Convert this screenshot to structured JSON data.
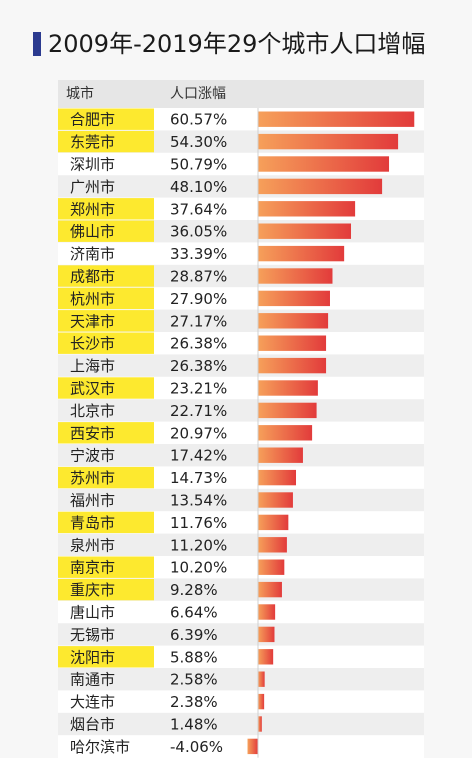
{
  "title": "2009年-2019年29个城市人口增幅",
  "table": {
    "col_city": "城市",
    "col_growth": "人口涨幅"
  },
  "colors": {
    "highlight": "#fde92f",
    "bar_start": "#f6a05a",
    "bar_end": "#e23b3b",
    "row_alt": "#eeeeee",
    "accent": "#2b3a8f"
  },
  "chart_data": {
    "type": "bar",
    "orientation": "horizontal",
    "title": "2009年-2019年29个城市人口增幅",
    "categories": [
      "合肥市",
      "东莞市",
      "深圳市",
      "广州市",
      "郑州市",
      "佛山市",
      "济南市",
      "成都市",
      "杭州市",
      "天津市",
      "长沙市",
      "上海市",
      "武汉市",
      "北京市",
      "西安市",
      "宁波市",
      "苏州市",
      "福州市",
      "青岛市",
      "泉州市",
      "南京市",
      "重庆市",
      "唐山市",
      "无锡市",
      "沈阳市",
      "南通市",
      "大连市",
      "烟台市",
      "哈尔滨市"
    ],
    "values": [
      60.57,
      54.3,
      50.79,
      48.1,
      37.64,
      36.05,
      33.39,
      28.87,
      27.9,
      27.17,
      26.38,
      26.38,
      23.21,
      22.71,
      20.97,
      17.42,
      14.73,
      13.54,
      11.76,
      11.2,
      10.2,
      9.28,
      6.64,
      6.39,
      5.88,
      2.58,
      2.38,
      1.48,
      -4.06
    ],
    "value_labels": [
      "60.57%",
      "54.30%",
      "50.79%",
      "48.10%",
      "37.64%",
      "36.05%",
      "33.39%",
      "28.87%",
      "27.90%",
      "27.17%",
      "26.38%",
      "26.38%",
      "23.21%",
      "22.71%",
      "20.97%",
      "17.42%",
      "14.73%",
      "13.54%",
      "11.76%",
      "11.20%",
      "10.20%",
      "9.28%",
      "6.64%",
      "6.39%",
      "5.88%",
      "2.58%",
      "2.38%",
      "1.48%",
      "-4.06%"
    ],
    "highlighted": [
      true,
      true,
      false,
      false,
      true,
      true,
      false,
      true,
      true,
      true,
      true,
      false,
      true,
      false,
      true,
      false,
      true,
      false,
      true,
      false,
      true,
      true,
      false,
      false,
      true,
      false,
      false,
      false,
      false
    ],
    "unit": "%"
  }
}
